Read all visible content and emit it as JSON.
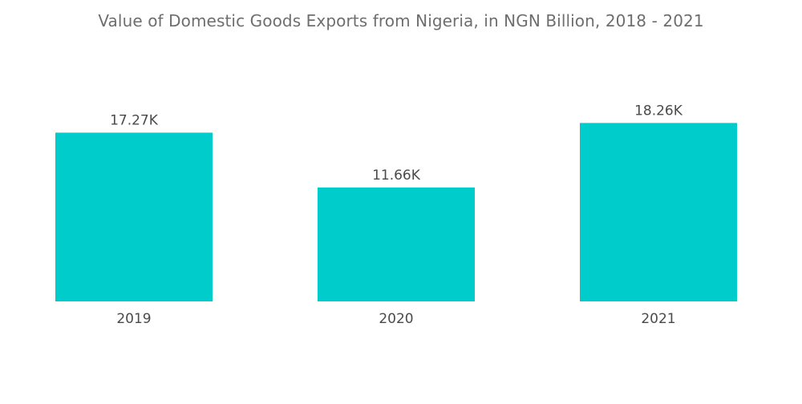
{
  "title": "Value of Domestic Goods Exports from Nigeria, in NGN Billion, 2018 - 2021",
  "colors": {
    "bar": "#00cccc"
  },
  "chart_data": {
    "type": "bar",
    "title": "Value of Domestic Goods Exports from Nigeria, in NGN Billion, 2018 - 2021",
    "categories": [
      "2019",
      "2020",
      "2021"
    ],
    "values": [
      17270,
      11660,
      18260
    ],
    "value_labels": [
      "17.27K",
      "11.66K",
      "18.26K"
    ],
    "xlabel": "",
    "ylabel": "",
    "ylim": [
      0,
      21000
    ],
    "grid": false,
    "legend": "none"
  }
}
